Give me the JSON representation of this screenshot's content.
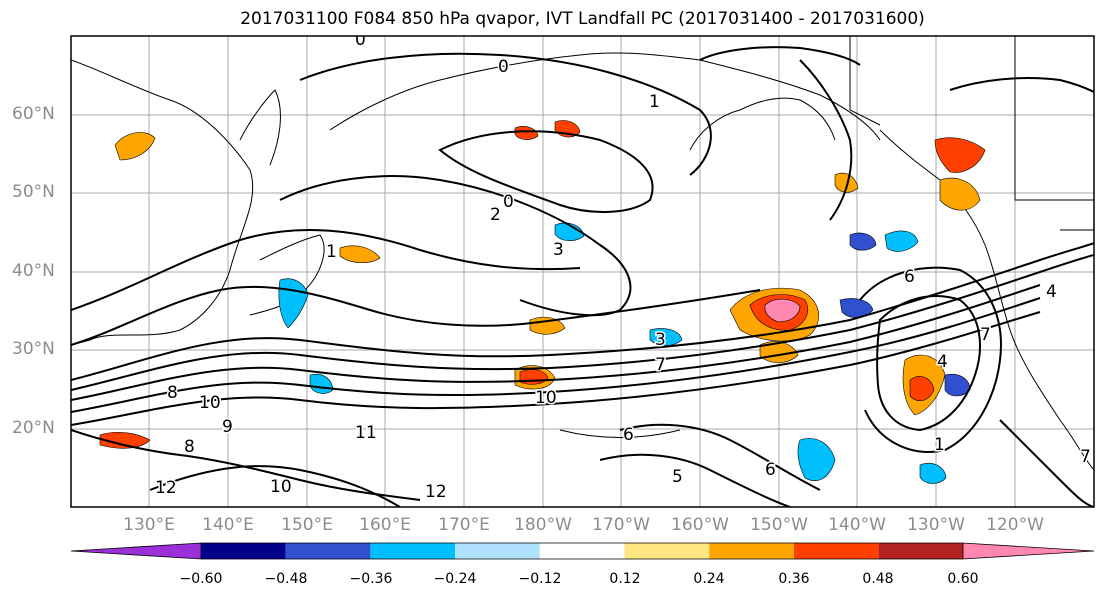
{
  "title": "2017031100 F084 850 hPa qvapor, IVT Landfall PC (2017031400 - 2017031600)",
  "lat_labels": [
    "60°N",
    "50°N",
    "40°N",
    "30°N",
    "20°N"
  ],
  "lon_labels": [
    "130°E",
    "140°E",
    "150°E",
    "160°E",
    "170°E",
    "180°W",
    "170°W",
    "160°W",
    "150°W",
    "140°W",
    "130°W",
    "120°W"
  ],
  "colorbar": {
    "colors": [
      "#9b30d9",
      "#00008b",
      "#3050d0",
      "#00bfff",
      "#b0e2ff",
      "#ffffff",
      "#ffe680",
      "#ffa500",
      "#ff4000",
      "#b22222",
      "#ff88b0"
    ],
    "tick_labels": [
      "−0.60",
      "−0.48",
      "−0.36",
      "−0.24",
      "−0.12",
      "0.12",
      "0.24",
      "0.36",
      "0.48",
      "0.60"
    ]
  },
  "contour_labels": [
    "0",
    "0",
    "0",
    "1",
    "2",
    "3",
    "3",
    "7",
    "8",
    "10",
    "10",
    "11",
    "12",
    "6",
    "6",
    "5",
    "4",
    "4",
    "1",
    "1",
    "8",
    "9",
    "7",
    "6",
    "12",
    "10",
    "7"
  ]
}
